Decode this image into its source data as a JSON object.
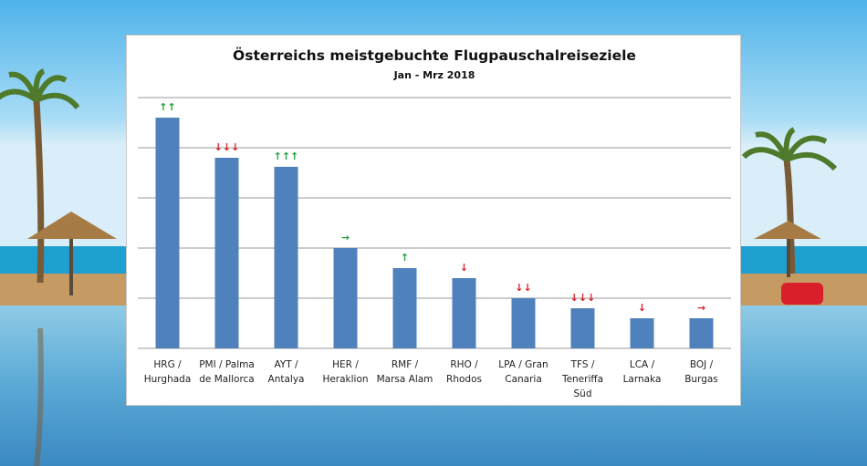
{
  "chart_data": {
    "type": "bar",
    "title": "Österreichs meistgebuchte Flugpauschalreiseziele",
    "subtitle": "Jan - Mrz 2018",
    "xlabel": "",
    "ylabel": "",
    "ylim": [
      0,
      5
    ],
    "grid": true,
    "categories": [
      [
        "HRG /",
        "Hurghada"
      ],
      [
        "PMI / Palma",
        "de Mallorca"
      ],
      [
        "AYT /",
        "Antalya"
      ],
      [
        "HER /",
        "Heraklion"
      ],
      [
        "RMF /",
        "Marsa Alam"
      ],
      [
        "RHO /",
        "Rhodos"
      ],
      [
        "LPA / Gran",
        "Canaria"
      ],
      [
        "TFS /",
        "Teneriffa",
        "Süd"
      ],
      [
        "LCA /",
        "Larnaka"
      ],
      [
        "BOJ /",
        "Burgas"
      ]
    ],
    "values": [
      4.6,
      3.8,
      3.62,
      2.0,
      1.6,
      1.4,
      1.0,
      0.8,
      0.6,
      0.6
    ],
    "trends": [
      "↑↑",
      "↓↓↓",
      "↑↑↑",
      "→",
      "↑",
      "↓",
      "↓↓",
      "↓↓↓",
      "↓",
      "→"
    ],
    "trend_directions": [
      "up",
      "down",
      "up",
      "flat",
      "up",
      "down",
      "down",
      "down",
      "down",
      "flat"
    ]
  },
  "colors": {
    "bar": "#4f81bd",
    "up": "#1f9e3a",
    "down": "#d61f26",
    "flat_hrg": "#1f9e3a",
    "flat_boj": "#d61f26"
  }
}
